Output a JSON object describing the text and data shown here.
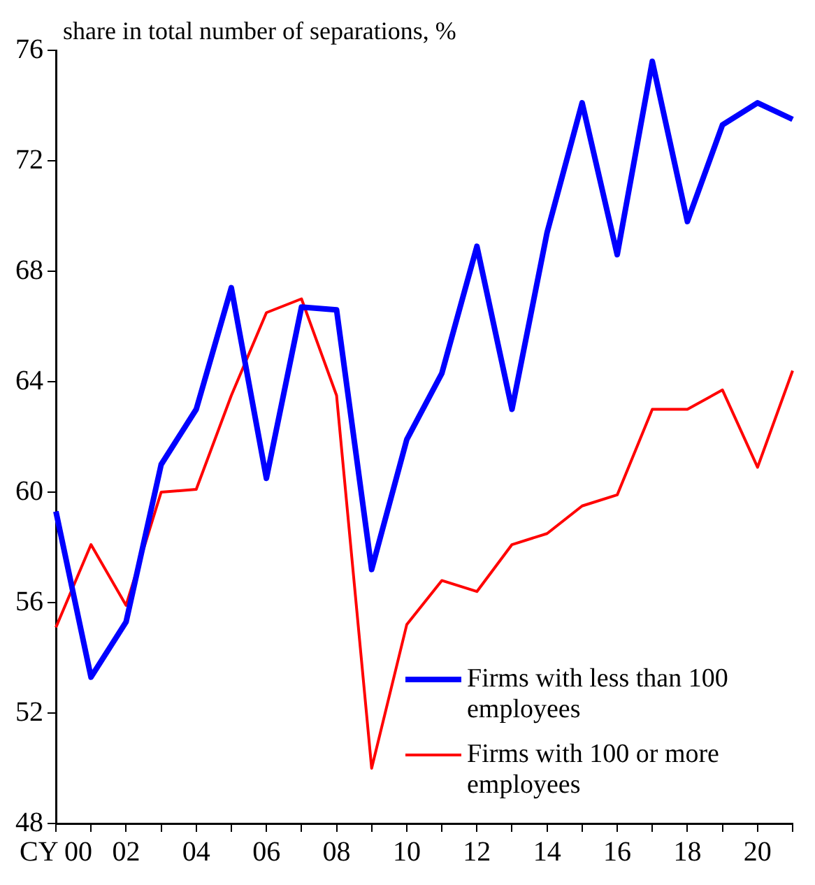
{
  "chart_data": {
    "type": "line",
    "ylabel": "share in total number of separations, %",
    "categories": [
      "CY 00",
      null,
      "02",
      null,
      "04",
      null,
      "06",
      null,
      "08",
      null,
      "10",
      null,
      "12",
      null,
      "14",
      null,
      "16",
      null,
      "18",
      null,
      "20",
      null
    ],
    "series": [
      {
        "name": "Firms with less than 100 employees",
        "color": "#0000ff",
        "values": [
          59.3,
          53.3,
          55.3,
          61,
          63,
          67.4,
          60.5,
          66.7,
          66.6,
          57.2,
          61.9,
          64.3,
          68.9,
          63,
          69.4,
          74.1,
          68.6,
          75.6,
          69.8,
          73.3,
          74.1,
          73.5
        ]
      },
      {
        "name": "Firms with 100 or more employees",
        "color": "#ff0000",
        "values": [
          55.1,
          58.1,
          55.9,
          60,
          60.1,
          63.5,
          66.5,
          67,
          63.5,
          50,
          55.2,
          56.8,
          56.4,
          58.1,
          58.5,
          59.5,
          59.9,
          63,
          63,
          63.7,
          60.9,
          64.4
        ]
      }
    ],
    "ylim": [
      48,
      76
    ],
    "yticks": [
      48,
      52,
      56,
      60,
      64,
      68,
      72,
      76
    ],
    "grid": false,
    "legend": "bottom right",
    "marker": "none",
    "line_style": "solid"
  }
}
